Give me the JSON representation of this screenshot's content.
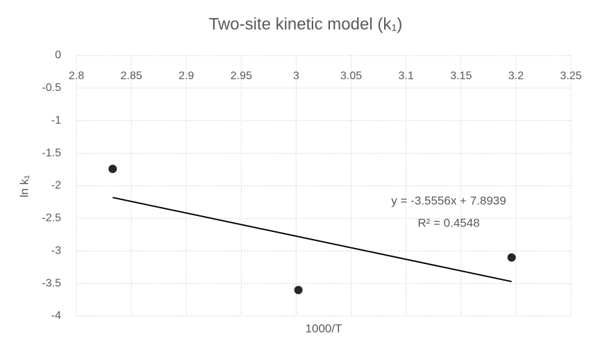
{
  "chart_data": {
    "type": "scatter",
    "title": "Two-site kinetic model (k₁)",
    "x_label": "1000/T",
    "y_label": "ln k₁",
    "series": [
      {
        "name": "ln k₁",
        "color": "#262626",
        "x": [
          2.833,
          3.002,
          3.196
        ],
        "values": [
          -1.74,
          -3.6,
          -3.1
        ]
      }
    ],
    "trendline": {
      "slope": -3.5556,
      "intercept": 7.8939,
      "label": "y = -3.5556x + 7.8939",
      "r2_label": "R² = 0.4548",
      "color": "#000000"
    },
    "xlim": [
      2.8,
      3.25
    ],
    "xticks": [
      2.8,
      2.85,
      2.9,
      2.95,
      3,
      3.05,
      3.1,
      3.15,
      3.2,
      3.25
    ],
    "ylim": [
      -4,
      0
    ],
    "yticks": [
      0,
      -0.5,
      -1,
      -1.5,
      -2,
      -2.5,
      -3,
      -3.5,
      -4
    ],
    "grid": true
  }
}
